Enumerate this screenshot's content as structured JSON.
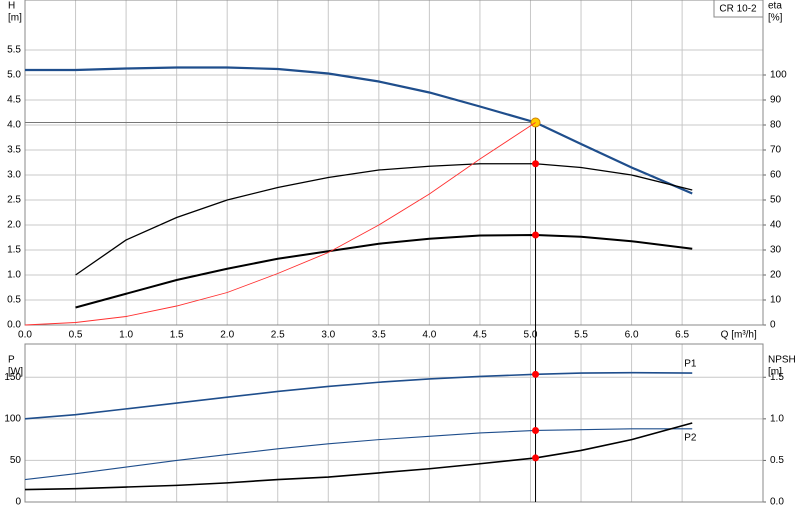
{
  "chart_data": [
    {
      "type": "line",
      "label_box": "CR 10-2",
      "ylabel": [
        "H",
        "[m]"
      ],
      "y2label": [
        "eta",
        "[%]"
      ],
      "xlabel": "Q [m³/h]",
      "xlim": [
        0,
        7.3
      ],
      "ylim": [
        0,
        6.5
      ],
      "y2lim": [
        0,
        130
      ],
      "grid": true,
      "xticks": [
        {
          "value": 0,
          "label": "0.0"
        },
        0.5,
        {
          "value": 1,
          "label": "1.0"
        },
        1.5,
        {
          "value": 2,
          "label": "2.0"
        },
        2.5,
        {
          "value": 3,
          "label": "3.0"
        },
        3.5,
        {
          "value": 4,
          "label": "4.0"
        },
        4.5,
        {
          "value": 5,
          "label": "5.0"
        },
        5.5,
        {
          "value": 6,
          "label": "6.0"
        },
        6.5
      ],
      "yticks": [
        {
          "value": 0,
          "label": "0.0"
        },
        0.5,
        {
          "value": 1,
          "label": "1.0"
        },
        1.5,
        {
          "value": 2,
          "label": "2.0"
        },
        2.5,
        {
          "value": 3,
          "label": "3.0"
        },
        3.5,
        {
          "value": 4,
          "label": "4.0"
        },
        4.5,
        {
          "value": 5,
          "label": "5.0"
        },
        5.5
      ],
      "y2ticks": [
        0,
        10,
        20,
        30,
        40,
        50,
        60,
        70,
        80,
        90,
        100
      ],
      "operating_q": 5.05,
      "series": [
        {
          "color": "#1f4e8c",
          "line_width": 2.2,
          "x": [
            0,
            0.5,
            1,
            1.5,
            2,
            2.5,
            3,
            3.5,
            4,
            4.5,
            5.05,
            5.5,
            6,
            6.6
          ],
          "values": [
            5.1,
            5.1,
            5.13,
            5.15,
            5.15,
            5.12,
            5.03,
            4.87,
            4.65,
            4.37,
            4.05,
            3.62,
            3.15,
            2.63
          ],
          "duty_color": "#ffcc00"
        },
        {
          "color": "#000000",
          "line_width": 1.3,
          "axis": "y2",
          "x": [
            0.5,
            1,
            1.5,
            2,
            2.5,
            3,
            3.5,
            4,
            4.5,
            5.05,
            5.5,
            6,
            6.6
          ],
          "values": [
            20,
            34,
            43,
            50,
            55,
            59,
            62,
            63.5,
            64.5,
            64.5,
            63,
            60,
            54
          ],
          "duty_color": "#ff0000"
        },
        {
          "color": "#000000",
          "line_width": 2,
          "axis": "y2",
          "x": [
            0.5,
            1,
            1.5,
            2,
            2.5,
            3,
            3.5,
            4,
            4.5,
            5.05,
            5.5,
            6,
            6.6
          ],
          "values": [
            7,
            12.5,
            18,
            22.5,
            26.5,
            29.5,
            32.5,
            34.5,
            35.8,
            36,
            35.3,
            33.5,
            30.5
          ],
          "duty_color": "#ff0000"
        },
        {
          "color": "#ff3030",
          "line_width": 0.9,
          "x": [
            0,
            0.5,
            1,
            1.5,
            2,
            2.5,
            3,
            3.5,
            4,
            4.5,
            5.05
          ],
          "values": [
            0,
            0.05,
            0.17,
            0.38,
            0.65,
            1.03,
            1.45,
            2,
            2.62,
            3.32,
            4.05
          ]
        }
      ]
    },
    {
      "type": "line",
      "ylabel": [
        "P",
        "[W]"
      ],
      "y2label": [
        "NPSH",
        "[m]"
      ],
      "xlim": [
        0,
        7.3
      ],
      "ylim": [
        0,
        190
      ],
      "y2lim": [
        0,
        1.9
      ],
      "grid": true,
      "yticks": [
        0,
        50,
        100,
        150
      ],
      "y2ticks": [
        {
          "value": 0,
          "label": "0.0"
        },
        0.5,
        {
          "value": 1,
          "label": "1.0"
        },
        1.5
      ],
      "operating_q": 5.05,
      "series": [
        {
          "name": "P1",
          "color": "#1f4e8c",
          "line_width": 1.6,
          "x": [
            0,
            0.5,
            1,
            1.5,
            2,
            2.5,
            3,
            3.5,
            4,
            4.5,
            5.05,
            5.5,
            6,
            6.6
          ],
          "values": [
            100,
            105,
            112,
            119,
            126,
            133,
            139,
            144,
            148,
            151,
            153.5,
            155,
            155.5,
            155
          ],
          "duty_color": "#ff0000"
        },
        {
          "name": "P2",
          "color": "#1f4e8c",
          "line_width": 1.1,
          "x": [
            0,
            0.5,
            1,
            1.5,
            2,
            2.5,
            3,
            3.5,
            4,
            4.5,
            5.05,
            5.5,
            6,
            6.6
          ],
          "values": [
            27,
            34,
            42,
            50,
            57,
            64,
            70,
            75,
            79,
            83,
            86,
            87,
            88,
            88
          ],
          "duty_color": "#ff0000"
        },
        {
          "color": "#000000",
          "line_width": 1.6,
          "axis": "y2",
          "x": [
            0,
            0.5,
            1,
            1.5,
            2,
            2.5,
            3,
            3.5,
            4,
            4.5,
            5.05,
            5.5,
            6,
            6.6
          ],
          "values": [
            0.15,
            0.16,
            0.18,
            0.2,
            0.23,
            0.27,
            0.3,
            0.35,
            0.4,
            0.46,
            0.53,
            0.62,
            0.75,
            0.95
          ],
          "duty_color": "#ff0000"
        }
      ]
    }
  ]
}
